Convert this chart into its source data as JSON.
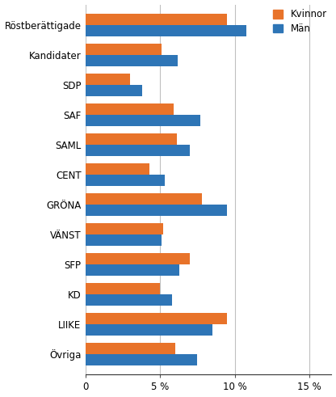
{
  "categories": [
    "Röstberättigade",
    "Kandidater",
    "SDP",
    "SAF",
    "SAML",
    "CENT",
    "GRÖNA",
    "VÄNST",
    "SFP",
    "KD",
    "LIIKE",
    "Övriga"
  ],
  "kvinnor": [
    9.5,
    5.1,
    3.0,
    5.9,
    6.1,
    4.3,
    7.8,
    5.2,
    7.0,
    5.0,
    9.5,
    6.0
  ],
  "man": [
    10.8,
    6.2,
    3.8,
    7.7,
    7.0,
    5.3,
    9.5,
    5.1,
    6.3,
    5.8,
    8.5,
    7.5
  ],
  "color_kvinnor": "#E8732A",
  "color_man": "#2E75B6",
  "legend_labels": [
    "Kvinnor",
    "Män"
  ],
  "xticks": [
    0,
    5,
    10,
    15
  ],
  "xtick_labels": [
    "0",
    "5 %",
    "10 %",
    "15 %"
  ],
  "xlim": [
    0,
    16.5
  ],
  "background_color": "#ffffff",
  "grid_color": "#c0c0c0"
}
